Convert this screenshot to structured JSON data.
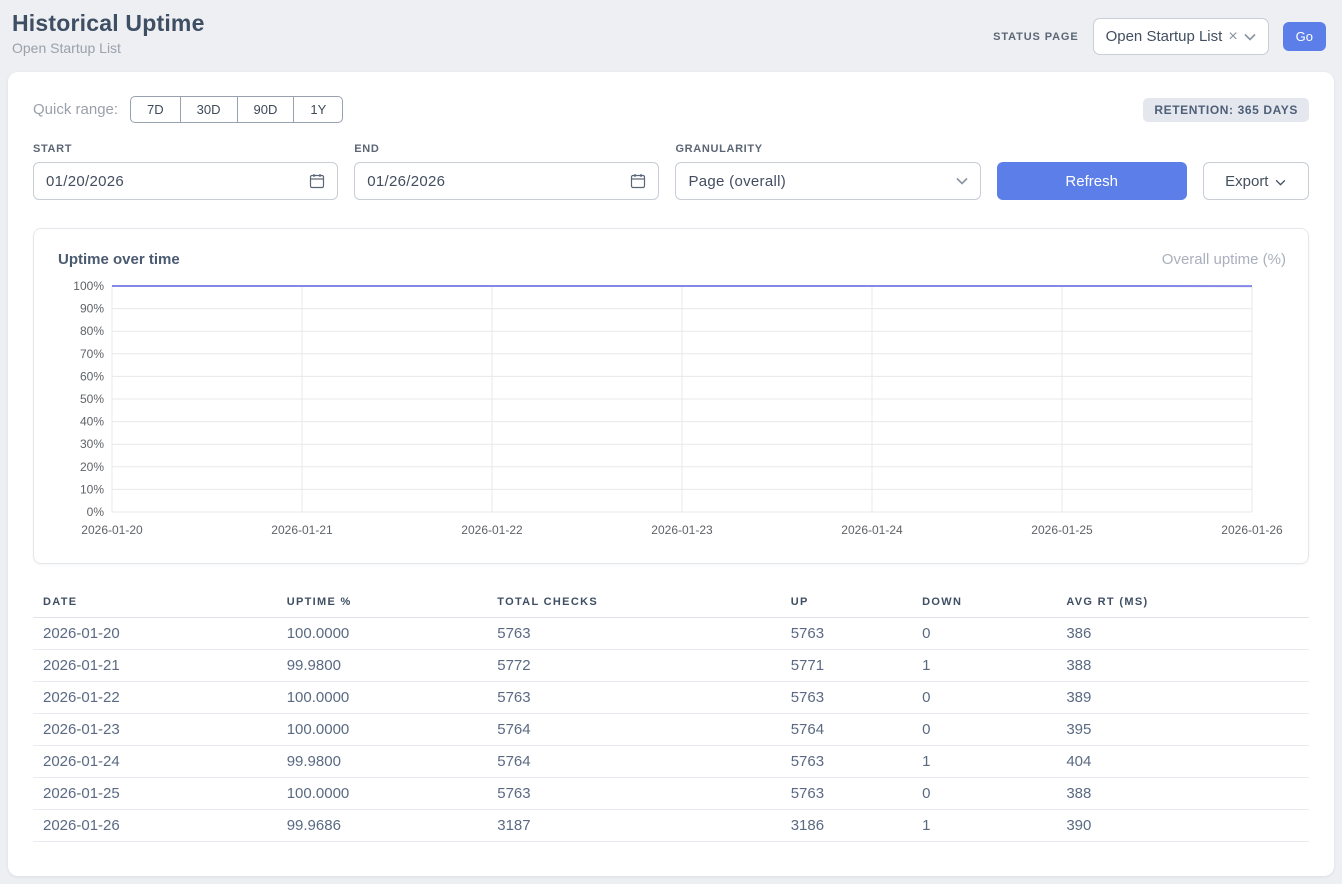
{
  "header": {
    "title": "Historical Uptime",
    "subtitle": "Open Startup List",
    "status_page_label": "STATUS PAGE",
    "status_page_value": "Open Startup List",
    "clear_glyph": "×",
    "go_label": "Go"
  },
  "filters": {
    "quick_range_label": "Quick range:",
    "quick_ranges": [
      "7D",
      "30D",
      "90D",
      "1Y"
    ],
    "retention_badge": "RETENTION: 365 DAYS",
    "start_label": "START",
    "start_value": "01/20/2026",
    "end_label": "END",
    "end_value": "01/26/2026",
    "granularity_label": "GRANULARITY",
    "granularity_value": "Page (overall)",
    "refresh_label": "Refresh",
    "export_label": "Export"
  },
  "chart": {
    "title": "Uptime over time",
    "legend": "Overall uptime (%)"
  },
  "chart_data": {
    "type": "line",
    "x": [
      "2026-01-20",
      "2026-01-21",
      "2026-01-22",
      "2026-01-23",
      "2026-01-24",
      "2026-01-25",
      "2026-01-26"
    ],
    "series": [
      {
        "name": "Overall uptime (%)",
        "values": [
          100.0,
          99.98,
          100.0,
          100.0,
          99.98,
          100.0,
          99.9686
        ]
      }
    ],
    "ylim": [
      0,
      100
    ],
    "ytick_step": 10,
    "ytick_suffix": "%",
    "grid": true,
    "legend_position": "top-right",
    "line_color": "#8587e8",
    "grid_color": "#e8e8ea",
    "tick_color": "#5f6368"
  },
  "table": {
    "columns": [
      "DATE",
      "UPTIME %",
      "TOTAL CHECKS",
      "UP",
      "DOWN",
      "AVG RT (MS)"
    ],
    "rows": [
      [
        "2026-01-20",
        "100.0000",
        "5763",
        "5763",
        "0",
        "386"
      ],
      [
        "2026-01-21",
        "99.9800",
        "5772",
        "5771",
        "1",
        "388"
      ],
      [
        "2026-01-22",
        "100.0000",
        "5763",
        "5763",
        "0",
        "389"
      ],
      [
        "2026-01-23",
        "100.0000",
        "5764",
        "5764",
        "0",
        "395"
      ],
      [
        "2026-01-24",
        "99.9800",
        "5764",
        "5763",
        "1",
        "404"
      ],
      [
        "2026-01-25",
        "100.0000",
        "5763",
        "5763",
        "0",
        "388"
      ],
      [
        "2026-01-26",
        "99.9686",
        "3187",
        "3186",
        "1",
        "390"
      ]
    ]
  },
  "colors": {
    "accent": "#5c7ee9",
    "line": "#8587e8",
    "badge_bg": "#e4e8ee",
    "page_bg": "#edeff3"
  }
}
